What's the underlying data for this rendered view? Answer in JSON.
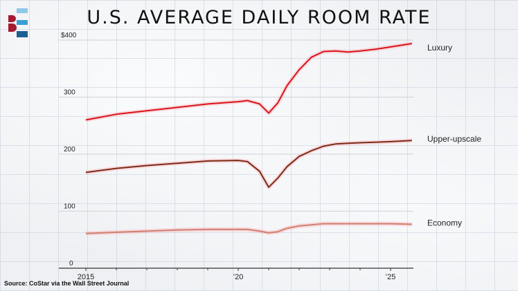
{
  "title": "U.S. AVERAGE DAILY ROOM RATE",
  "source": "Source: CoStar via the Wall Street Journal",
  "colors": {
    "luxury": "#d8141b",
    "upper_upscale": "#7a2a16",
    "economy": "#cf8070",
    "logo_red": "#a51c30",
    "logo_blue_light": "#8ec9e8",
    "logo_blue_mid": "#3aa0d4",
    "logo_blue_dark": "#1d5f8f"
  },
  "chart_data": {
    "type": "line",
    "title": "U.S. AVERAGE DAILY ROOM RATE",
    "xlabel": "",
    "ylabel": "",
    "xlim": [
      2014.1,
      2026.7
    ],
    "ylim": [
      0,
      400
    ],
    "grid": true,
    "y_ticks": [
      {
        "value": 0,
        "label": "0"
      },
      {
        "value": 100,
        "label": "100"
      },
      {
        "value": 200,
        "label": "200"
      },
      {
        "value": 300,
        "label": "300"
      },
      {
        "value": 400,
        "label": "$400"
      }
    ],
    "x_ticks": [
      {
        "value": 2015,
        "label": "2015"
      },
      {
        "value": 2020,
        "label": "’20"
      },
      {
        "value": 2025,
        "label": "’25"
      }
    ],
    "x_minor_ticks": [
      2016,
      2017,
      2018,
      2019,
      2021,
      2022,
      2023,
      2024
    ],
    "series": [
      {
        "name": "Luxury",
        "color": "#d8141b",
        "x": [
          2015,
          2016,
          2017,
          2018,
          2019,
          2020,
          2020.3,
          2020.7,
          2021,
          2021.3,
          2021.6,
          2022,
          2022.4,
          2022.8,
          2023.2,
          2023.6,
          2024,
          2024.5,
          2025,
          2025.7
        ],
        "y": [
          260,
          270,
          276,
          282,
          288,
          292,
          294,
          288,
          272,
          290,
          320,
          348,
          370,
          380,
          381,
          379,
          381,
          384,
          388,
          394
        ]
      },
      {
        "name": "Upper-upscale",
        "color": "#7a2a16",
        "x": [
          2015,
          2016,
          2017,
          2018,
          2019,
          2020,
          2020.3,
          2020.7,
          2021,
          2021.3,
          2021.6,
          2022,
          2022.4,
          2022.8,
          2023.2,
          2023.6,
          2024,
          2024.5,
          2025,
          2025.7
        ],
        "y": [
          168,
          175,
          180,
          184,
          188,
          189,
          187,
          170,
          142,
          158,
          178,
          196,
          206,
          214,
          218,
          219,
          220,
          221,
          222,
          224
        ]
      },
      {
        "name": "Economy",
        "color": "#cf8070",
        "x": [
          2015,
          2016,
          2017,
          2018,
          2019,
          2020,
          2020.3,
          2020.7,
          2021,
          2021.3,
          2021.6,
          2022,
          2022.4,
          2022.8,
          2023.2,
          2023.6,
          2024,
          2024.5,
          2025,
          2025.7
        ],
        "y": [
          61,
          63,
          65,
          67,
          68,
          68,
          68,
          65,
          62,
          64,
          70,
          74,
          76,
          78,
          78,
          78,
          78,
          78,
          78,
          77
        ]
      }
    ]
  }
}
